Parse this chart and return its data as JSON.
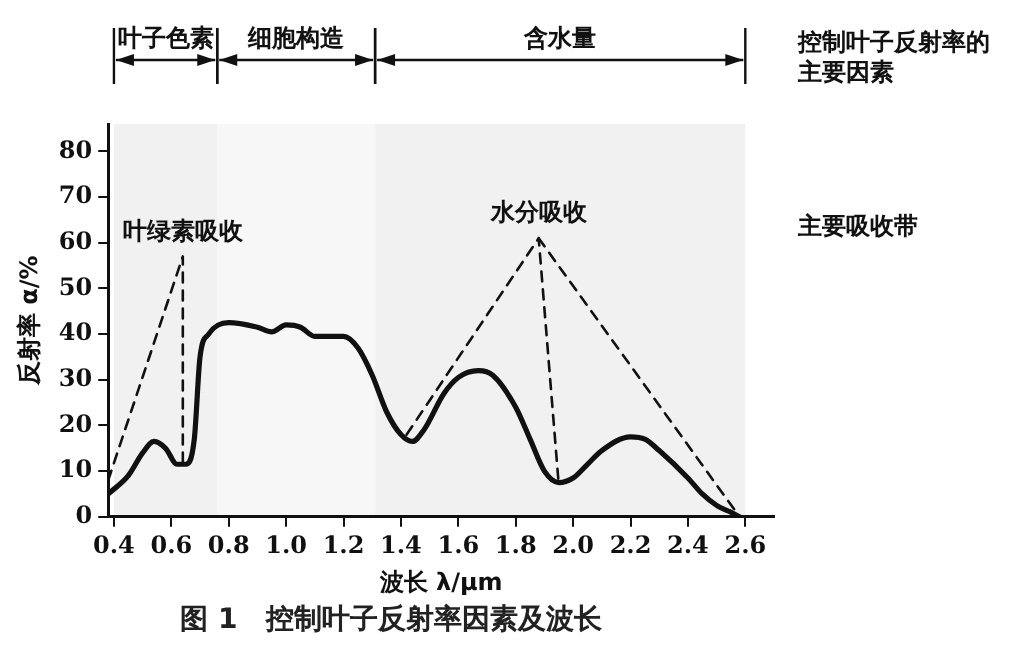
{
  "chart_data": {
    "type": "line",
    "title": "图 1　控制叶子反射率因素及波长",
    "xlabel": "波长 λ/μm",
    "ylabel": "反射率 α/%",
    "xlim": [
      0.38,
      2.7
    ],
    "ylim": [
      0,
      86
    ],
    "xticks": [
      0.4,
      0.6,
      0.8,
      {
        "value": 1,
        "label": "1.0"
      },
      1.2,
      1.4,
      1.6,
      1.8,
      {
        "value": 2,
        "label": "2.0"
      },
      2.2,
      2.4,
      2.6
    ],
    "yticks": [
      0,
      10,
      20,
      30,
      40,
      50,
      60,
      70,
      80
    ],
    "grid": false,
    "legend": false,
    "marker": "none",
    "series": [
      {
        "color": "#111111",
        "line_style": "solid",
        "x": [
          0.38,
          0.45,
          0.5,
          0.54,
          0.58,
          0.62,
          0.65,
          0.68,
          0.7,
          0.73,
          0.8,
          0.9,
          0.95,
          1.0,
          1.05,
          1.1,
          1.2,
          1.25,
          1.3,
          1.35,
          1.4,
          1.44,
          1.48,
          1.55,
          1.6,
          1.67,
          1.72,
          1.8,
          1.85,
          1.9,
          1.95,
          2.0,
          2.05,
          2.1,
          2.2,
          2.25,
          2.3,
          2.4,
          2.45,
          2.5,
          2.55,
          2.58
        ],
        "values": [
          5,
          9,
          14,
          16.5,
          15,
          11.5,
          11.5,
          17,
          35,
          40,
          42.5,
          41.5,
          40.5,
          42,
          41.5,
          39.5,
          39.5,
          37,
          31,
          23,
          18,
          16.5,
          19,
          27,
          30.5,
          32,
          31,
          24,
          17,
          10,
          7.5,
          8.5,
          11.5,
          14.5,
          17.5,
          17,
          14.5,
          8.5,
          5,
          2.5,
          1,
          0
        ]
      },
      {
        "color": "#111111",
        "line_style": "dashed",
        "x": [
          0.38,
          0.64,
          0.64
        ],
        "values": [
          8,
          57,
          11
        ]
      },
      {
        "color": "#111111",
        "line_style": "dashed",
        "x": [
          1.42,
          1.88,
          1.95
        ],
        "values": [
          18,
          61,
          7
        ]
      },
      {
        "color": "#111111",
        "line_style": "dashed",
        "x": [
          1.88,
          2.58
        ],
        "values": [
          61,
          0
        ]
      }
    ],
    "bands": [
      {
        "axis": "x",
        "from": 0.4,
        "to": 0.76,
        "label": "叶子色素",
        "color": "#111111"
      },
      {
        "axis": "x",
        "from": 0.76,
        "to": 1.31,
        "label": "细胞构造",
        "color": "#111111"
      },
      {
        "axis": "x",
        "from": 1.31,
        "to": 2.6,
        "label": "含水量",
        "color": "#111111"
      }
    ],
    "annotations": [
      "控制叶子反射率的主要因素",
      "主要吸收带",
      {
        "text": "叶绿素吸收",
        "x": 0.64,
        "y": 57
      },
      {
        "text": "水分吸收",
        "x": 1.88,
        "y": 61
      }
    ]
  }
}
